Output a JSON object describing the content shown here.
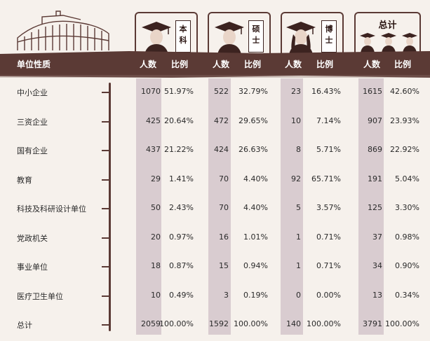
{
  "header": {
    "label_col": "单位性质",
    "count_label": "人数",
    "ratio_label": "比例"
  },
  "groups": [
    {
      "tag": "本科"
    },
    {
      "tag": "硕士"
    },
    {
      "tag": "博士"
    },
    {
      "tag": "总计"
    }
  ],
  "rows": [
    {
      "label": "中小企业",
      "cells": [
        [
          "1070",
          "51.97%"
        ],
        [
          "522",
          "32.79%"
        ],
        [
          "23",
          "16.43%"
        ],
        [
          "1615",
          "42.60%"
        ]
      ]
    },
    {
      "label": "三资企业",
      "cells": [
        [
          "425",
          "20.64%"
        ],
        [
          "472",
          "29.65%"
        ],
        [
          "10",
          "7.14%"
        ],
        [
          "907",
          "23.93%"
        ]
      ]
    },
    {
      "label": "国有企业",
      "cells": [
        [
          "437",
          "21.22%"
        ],
        [
          "424",
          "26.63%"
        ],
        [
          "8",
          "5.71%"
        ],
        [
          "869",
          "22.92%"
        ]
      ]
    },
    {
      "label": "教育",
      "cells": [
        [
          "29",
          "1.41%"
        ],
        [
          "70",
          "4.40%"
        ],
        [
          "92",
          "65.71%"
        ],
        [
          "191",
          "5.04%"
        ]
      ]
    },
    {
      "label": "科技及科研设计单位",
      "cells": [
        [
          "50",
          "2.43%"
        ],
        [
          "70",
          "4.40%"
        ],
        [
          "5",
          "3.57%"
        ],
        [
          "125",
          "3.30%"
        ]
      ]
    },
    {
      "label": "党政机关",
      "cells": [
        [
          "20",
          "0.97%"
        ],
        [
          "16",
          "1.01%"
        ],
        [
          "1",
          "0.71%"
        ],
        [
          "37",
          "0.98%"
        ]
      ]
    },
    {
      "label": "事业单位",
      "cells": [
        [
          "18",
          "0.87%"
        ],
        [
          "15",
          "0.94%"
        ],
        [
          "1",
          "0.71%"
        ],
        [
          "34",
          "0.90%"
        ]
      ]
    },
    {
      "label": "医疗卫生单位",
      "cells": [
        [
          "10",
          "0.49%"
        ],
        [
          "3",
          "0.19%"
        ],
        [
          "0",
          "0.00%"
        ],
        [
          "13",
          "0.34%"
        ]
      ]
    },
    {
      "label": "总计",
      "cells": [
        [
          "2059",
          "100.00%"
        ],
        [
          "1592",
          "100.00%"
        ],
        [
          "140",
          "100.00%"
        ],
        [
          "3791",
          "100.00%"
        ]
      ]
    }
  ],
  "colors": {
    "band": "#5b3a35",
    "highlight": "#d9ccd0",
    "background": "#f6f1ec"
  }
}
